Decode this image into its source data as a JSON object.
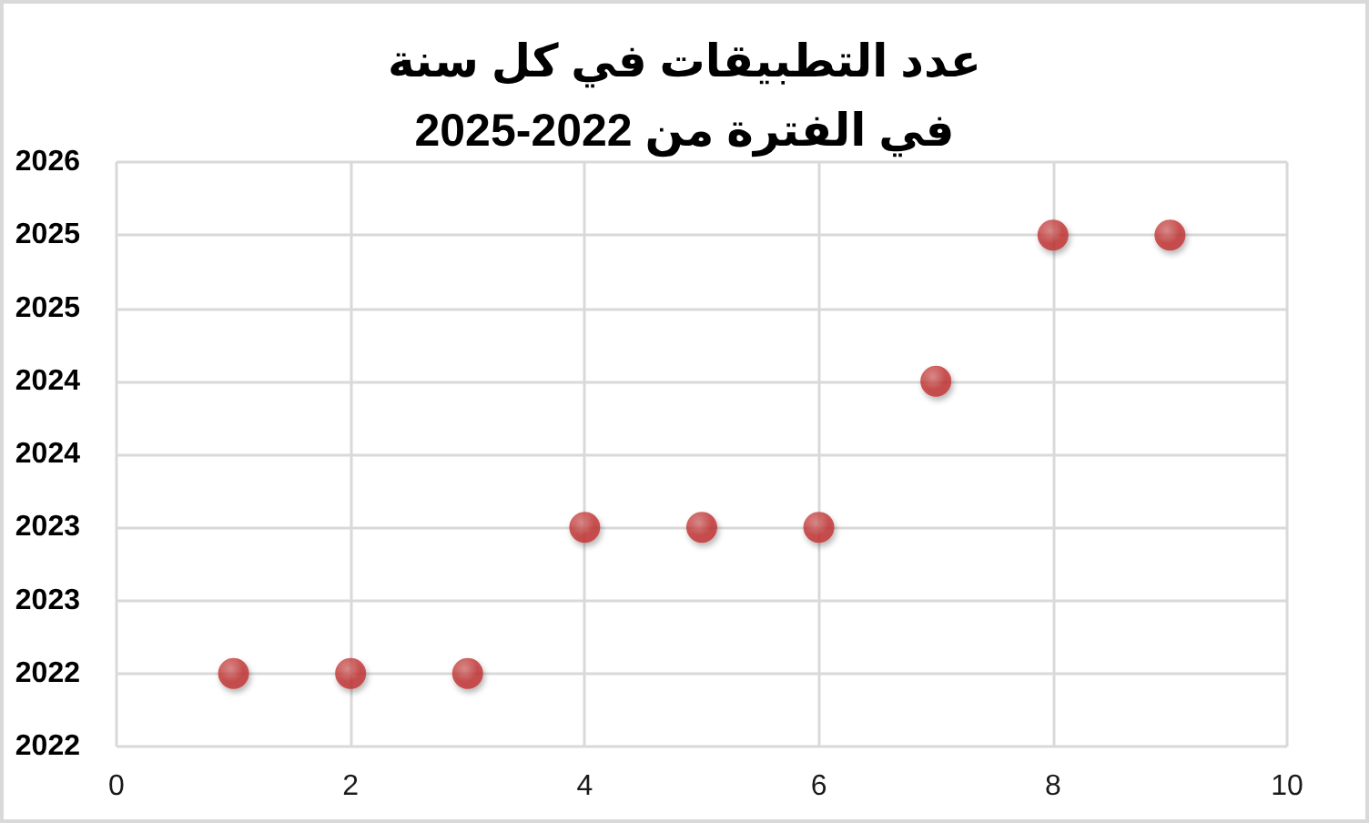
{
  "chart_data": {
    "type": "scatter",
    "title": "عدد التطبيقات في كل سنة\nفي الفترة من 2022-2025",
    "x": [
      1,
      2,
      3,
      4,
      5,
      6,
      7,
      8,
      9
    ],
    "values": [
      2022,
      2022,
      2022,
      2023,
      2023,
      2023,
      2024,
      2025,
      2025
    ],
    "color": "#c0302f",
    "marker": "circle",
    "xlim": [
      0,
      10
    ],
    "xticks": [
      0,
      2,
      4,
      6,
      8,
      10
    ],
    "ylim": [
      2021.5,
      2025.5
    ],
    "yticks": [
      {
        "value": 2021.5,
        "label": "2022"
      },
      {
        "value": 2022,
        "label": "2022"
      },
      {
        "value": 2022.5,
        "label": "2023"
      },
      {
        "value": 2023,
        "label": "2023"
      },
      {
        "value": 2023.5,
        "label": "2024"
      },
      {
        "value": 2024,
        "label": "2024"
      },
      {
        "value": 2024.5,
        "label": "2025"
      },
      {
        "value": 2025,
        "label": "2025"
      },
      {
        "value": 2025.5,
        "label": "2026"
      }
    ],
    "grid": true
  }
}
